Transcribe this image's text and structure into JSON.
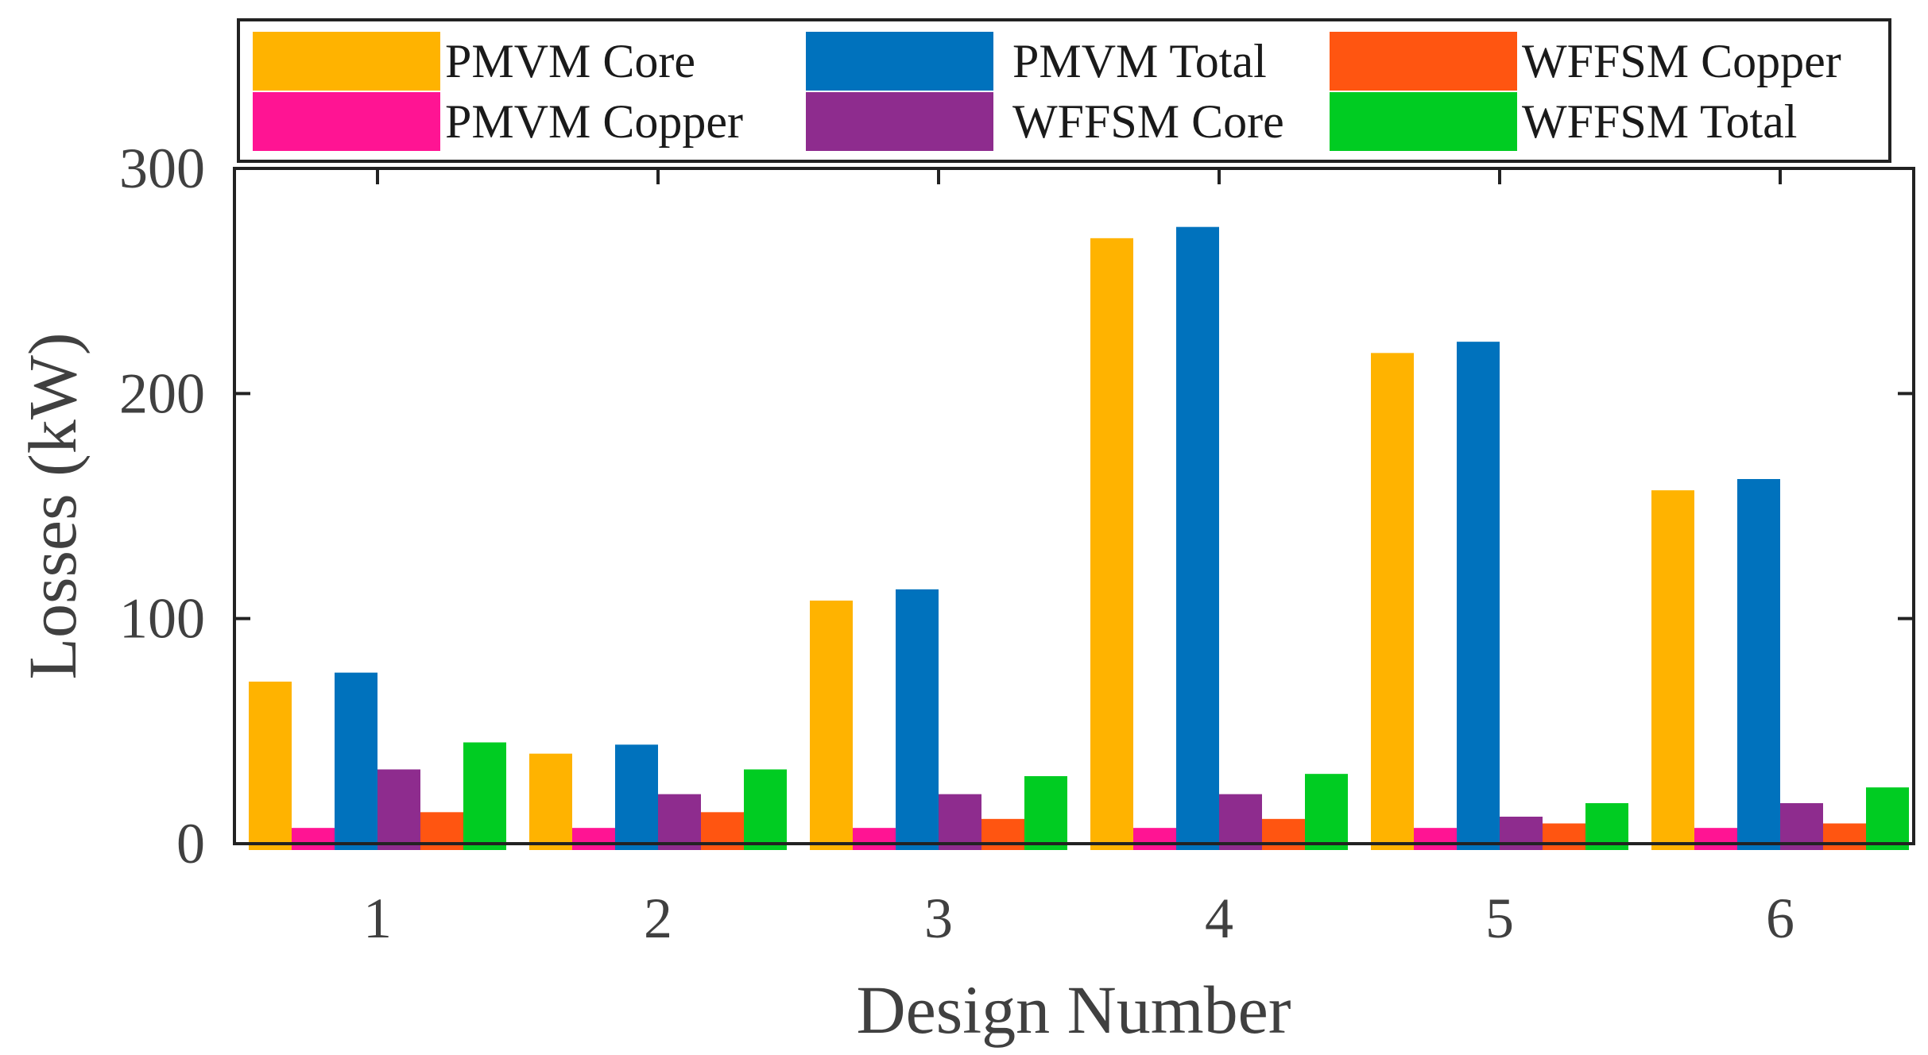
{
  "chart_data": {
    "type": "bar",
    "title": "",
    "xlabel": "Design Number",
    "ylabel": "Losses (kW)",
    "categories": [
      "1",
      "2",
      "3",
      "4",
      "5",
      "6"
    ],
    "ylim": [
      0,
      300
    ],
    "yticks": [
      "0",
      "100",
      "200",
      "300"
    ],
    "grid": false,
    "legend_position": "top",
    "series": [
      {
        "name": "PMVM Core",
        "color": "#FFB300",
        "values": [
          72,
          40,
          108,
          269,
          218,
          157
        ]
      },
      {
        "name": "PMVM Copper",
        "color": "#FF1493",
        "values": [
          7,
          7,
          7,
          7,
          7,
          7
        ]
      },
      {
        "name": "PMVM Total",
        "color": "#0072BD",
        "values": [
          76,
          44,
          113,
          274,
          223,
          162
        ]
      },
      {
        "name": "WFFSM Core",
        "color": "#8E2C8E",
        "values": [
          33,
          22,
          22,
          22,
          12,
          18
        ]
      },
      {
        "name": "WFFSM Copper",
        "color": "#FF5511",
        "values": [
          14,
          14,
          11,
          11,
          9,
          9
        ]
      },
      {
        "name": "WFFSM Total",
        "color": "#00CC22",
        "values": [
          45,
          33,
          30,
          31,
          18,
          25
        ]
      }
    ]
  }
}
